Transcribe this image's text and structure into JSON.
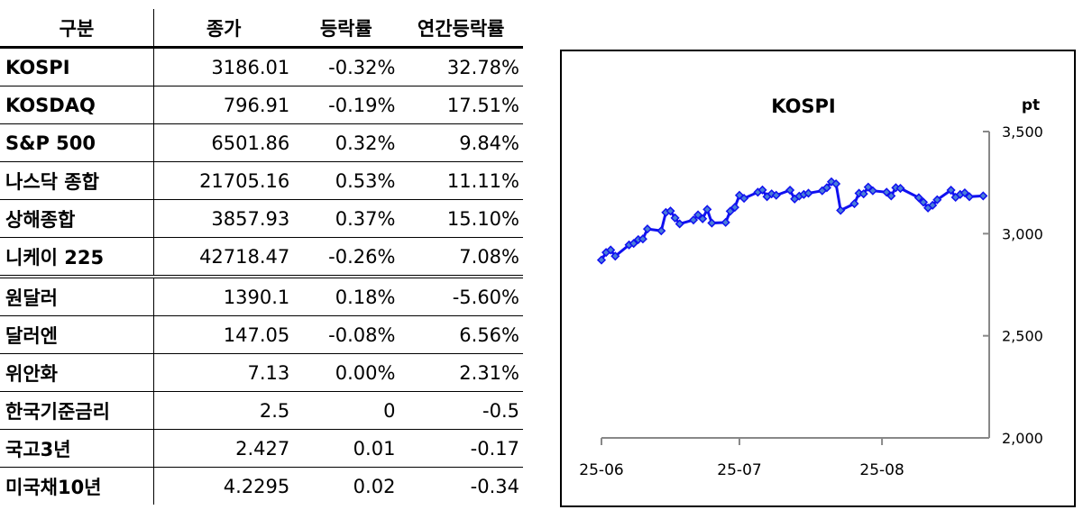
{
  "table": {
    "headers": [
      "구분",
      "종가",
      "등락률",
      "연간등락률"
    ],
    "rows": [
      [
        "KOSPI",
        "3186.01",
        "-0.32%",
        "32.78%"
      ],
      [
        "KOSDAQ",
        "796.91",
        "-0.19%",
        "17.51%"
      ],
      [
        "S&P 500",
        "6501.86",
        "0.32%",
        "9.84%"
      ],
      [
        "나스닥 종합",
        "21705.16",
        "0.53%",
        "11.11%"
      ],
      [
        "상해종합",
        "3857.93",
        "0.37%",
        "15.10%"
      ],
      [
        "니케이 225",
        "42718.47",
        "-0.26%",
        "7.08%"
      ],
      [
        "원달러",
        "1390.1",
        "0.18%",
        "-5.60%"
      ],
      [
        "달러엔",
        "147.05",
        "-0.08%",
        "6.56%"
      ],
      [
        "위안화",
        "7.13",
        "0.00%",
        "2.31%"
      ],
      [
        "한국기준금리",
        "2.5",
        "0",
        "-0.5"
      ],
      [
        "국고3년",
        "2.427",
        "0.01",
        "-0.17"
      ],
      [
        "미국채10년",
        "4.2295",
        "0.02",
        "-0.34"
      ]
    ]
  },
  "chart_data": {
    "type": "line",
    "title": "KOSPI",
    "ylabel": "pt",
    "xlabel": "",
    "x_unit": "days since 2025-06-01",
    "ylim": [
      2000,
      3500
    ],
    "yticks": [
      2000,
      2500,
      3000,
      3500
    ],
    "ytick_labels": [
      "2,000",
      "2,500",
      "3,000",
      "3,500"
    ],
    "xticks": [
      0,
      30,
      61
    ],
    "xtick_labels": [
      "25-06",
      "25-07",
      "25-08"
    ],
    "xlim": [
      0,
      84
    ],
    "line_color": "#1010f0",
    "marker_color": "#4a7fd8",
    "x": [
      0,
      1,
      2,
      3,
      6,
      7,
      8,
      9,
      10,
      13,
      14,
      15,
      16,
      17,
      20,
      21,
      22,
      23,
      24,
      27,
      28,
      29,
      30,
      31,
      34,
      35,
      36,
      37,
      38,
      41,
      42,
      43,
      44,
      45,
      48,
      49,
      50,
      51,
      52,
      55,
      56,
      57,
      58,
      59,
      62,
      63,
      64,
      65,
      69,
      70,
      71,
      72,
      73,
      76,
      77,
      78,
      79,
      80,
      83
    ],
    "y": [
      2871,
      2908,
      2920,
      2890,
      2945,
      2952,
      2971,
      2974,
      3023,
      3014,
      3104,
      3111,
      3077,
      3048,
      3067,
      3092,
      3073,
      3119,
      3052,
      3055,
      3110,
      3129,
      3188,
      3173,
      3203,
      3214,
      3181,
      3195,
      3188,
      3213,
      3170,
      3184,
      3192,
      3198,
      3210,
      3225,
      3254,
      3244,
      3114,
      3147,
      3198,
      3195,
      3228,
      3210,
      3203,
      3185,
      3225,
      3222,
      3176,
      3154,
      3126,
      3139,
      3166,
      3213,
      3178,
      3192,
      3200,
      3181,
      3185
    ]
  }
}
